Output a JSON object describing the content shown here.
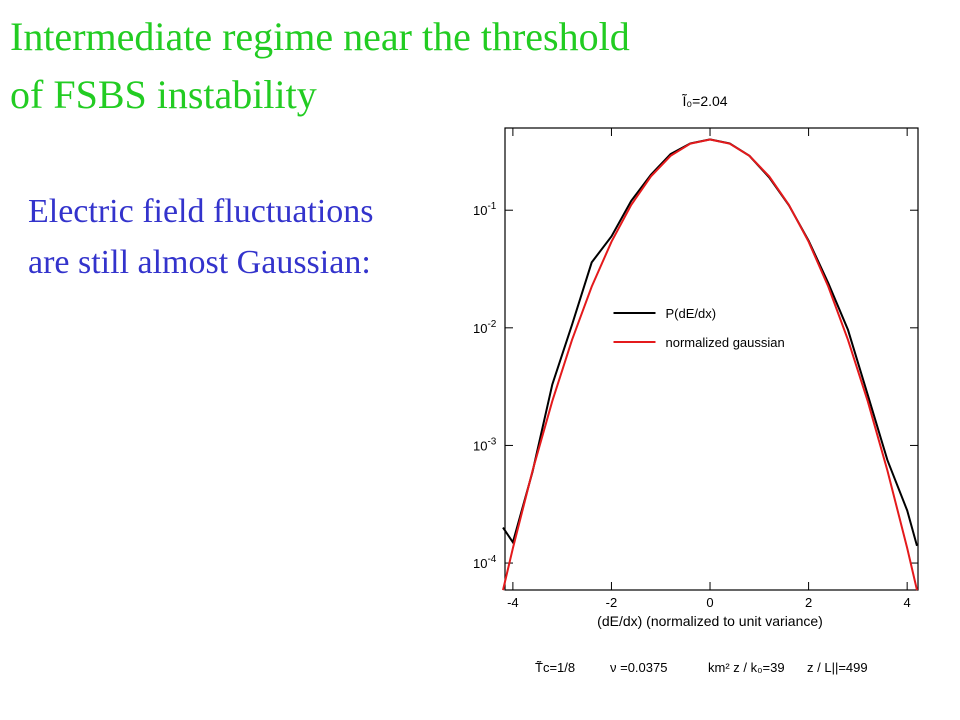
{
  "slide": {
    "title_lines": [
      "Intermediate regime near the threshold",
      "of FSBS instability"
    ],
    "text_lines": [
      "Electric field fluctuations",
      "are still almost Gaussian:"
    ]
  },
  "chart_data": {
    "type": "line",
    "title": "Ĩ₀=2.04",
    "xlabel": "(dE/dx) (normalized to unit variance)",
    "parameters": [
      "T̃c=1/8",
      "ν =0.0375",
      "km² z / k₀=39",
      "z / L||=499"
    ],
    "x": [
      -4.2,
      -4,
      -3.6,
      -3.2,
      -2.8,
      -2.4,
      -2,
      -1.6,
      -1.2,
      -0.8,
      -0.4,
      0,
      0.4,
      0.8,
      1.2,
      1.6,
      2,
      2.4,
      2.8,
      3.2,
      3.6,
      4,
      4.2
    ],
    "series": [
      {
        "name": "P(dE/dx)",
        "color": "#000000",
        "values": [
          0.0002,
          0.00015,
          0.0006,
          0.0033,
          0.0106,
          0.036,
          0.06,
          0.12,
          0.2,
          0.3,
          0.37,
          0.4,
          0.37,
          0.29,
          0.19,
          0.11,
          0.055,
          0.024,
          0.0096,
          0.0027,
          0.00075,
          0.00028,
          0.00014
        ]
      },
      {
        "name": "normalized gaussian",
        "color": "#e41a1c",
        "values": [
          5.89e-05,
          0.000134,
          0.000612,
          0.00238,
          0.0079,
          0.0224,
          0.054,
          0.111,
          0.194,
          0.29,
          0.368,
          0.399,
          0.368,
          0.29,
          0.194,
          0.111,
          0.054,
          0.0224,
          0.0079,
          0.00238,
          0.000612,
          0.000134,
          5.89e-05
        ]
      }
    ],
    "xlim": [
      -4.16,
      4.22
    ],
    "xticks": [
      -4,
      -2,
      0,
      2,
      4
    ],
    "ylim": [
      5.9e-05,
      0.5
    ],
    "log_y": true,
    "yticks": [
      {
        "value": 0.1,
        "label": "10",
        "exponent": "-1"
      },
      {
        "value": 0.01,
        "label": "10",
        "exponent": "-2"
      },
      {
        "value": 0.001,
        "label": "10",
        "exponent": "-3"
      },
      {
        "value": 0.0001,
        "label": "10",
        "exponent": "-4"
      }
    ],
    "legend": "center"
  }
}
